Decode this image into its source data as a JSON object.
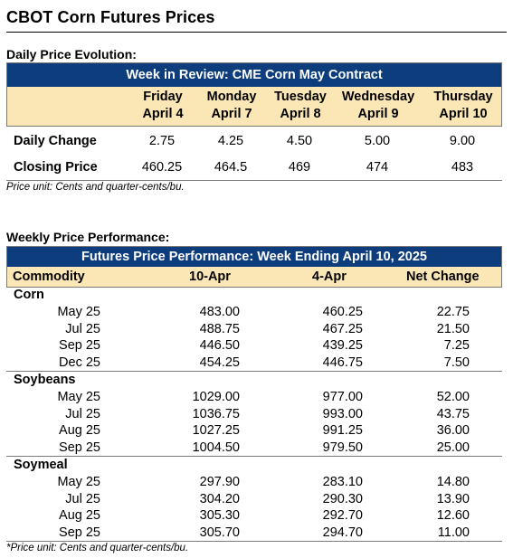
{
  "page_title": "CBOT Corn Futures Prices",
  "daily": {
    "section_title": "Daily Price Evolution:",
    "band_title": "Week in Review: CME Corn May Contract",
    "days": [
      {
        "day": "Friday",
        "date": "April 4"
      },
      {
        "day": "Monday",
        "date": "April 7"
      },
      {
        "day": "Tuesday",
        "date": "April 8"
      },
      {
        "day": "Wednesday",
        "date": "April 9"
      },
      {
        "day": "Thursday",
        "date": "April 10"
      }
    ],
    "rows": [
      {
        "label": "Daily Change",
        "values": [
          "2.75",
          "4.25",
          "4.50",
          "5.00",
          "9.00"
        ]
      },
      {
        "label": "Closing Price",
        "values": [
          "460.25",
          "464.5",
          "469",
          "474",
          "483"
        ]
      }
    ],
    "note": "Price unit: Cents and quarter-cents/bu."
  },
  "weekly": {
    "section_title": "Weekly Price Performance:",
    "band_title": "Futures Price Performance: Week Ending April 10, 2025",
    "headers": [
      "Commodity",
      "10-Apr",
      "4-Apr",
      "Net Change"
    ],
    "groups": [
      {
        "name": "Corn",
        "rows": [
          {
            "contract": "May 25",
            "a": "483.00",
            "b": "460.25",
            "c": "22.75"
          },
          {
            "contract": "Jul 25",
            "a": "488.75",
            "b": "467.25",
            "c": "21.50"
          },
          {
            "contract": "Sep 25",
            "a": "446.50",
            "b": "439.25",
            "c": "7.25"
          },
          {
            "contract": "Dec 25",
            "a": "454.25",
            "b": "446.75",
            "c": "7.50"
          }
        ]
      },
      {
        "name": "Soybeans",
        "rows": [
          {
            "contract": "May 25",
            "a": "1029.00",
            "b": "977.00",
            "c": "52.00"
          },
          {
            "contract": "Jul 25",
            "a": "1036.75",
            "b": "993.00",
            "c": "43.75"
          },
          {
            "contract": "Aug 25",
            "a": "1027.25",
            "b": "991.25",
            "c": "36.00"
          },
          {
            "contract": "Sep 25",
            "a": "1004.50",
            "b": "979.50",
            "c": "25.00"
          }
        ]
      },
      {
        "name": "Soymeal",
        "rows": [
          {
            "contract": "May 25",
            "a": "297.90",
            "b": "283.10",
            "c": "14.80"
          },
          {
            "contract": "Jul 25",
            "a": "304.20",
            "b": "290.30",
            "c": "13.90"
          },
          {
            "contract": "Aug 25",
            "a": "305.30",
            "b": "292.70",
            "c": "12.60"
          },
          {
            "contract": "Sep 25",
            "a": "305.70",
            "b": "294.70",
            "c": "11.00"
          }
        ]
      }
    ],
    "note": "*Price unit: Cents and quarter-cents/bu."
  },
  "colors": {
    "band": "#0e3d7d",
    "header_fill": "#fbe7b5"
  }
}
